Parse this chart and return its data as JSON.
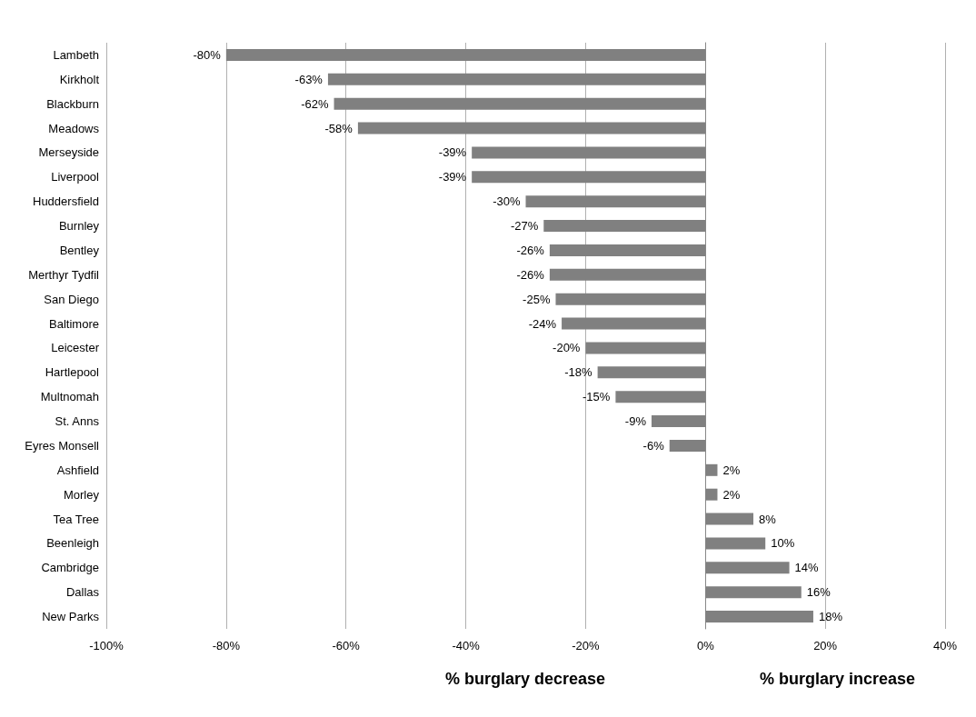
{
  "chart_data": {
    "type": "bar",
    "orientation": "horizontal",
    "categories": [
      "Lambeth",
      "Kirkholt",
      "Blackburn",
      "Meadows",
      "Merseyside",
      "Liverpool",
      "Huddersfield",
      "Burnley",
      "Bentley",
      "Merthyr Tydfil",
      "San Diego",
      "Baltimore",
      "Leicester",
      "Hartlepool",
      "Multnomah",
      "St. Anns",
      "Eyres Monsell",
      "Ashfield",
      "Morley",
      "Tea Tree",
      "Beenleigh",
      "Cambridge",
      "Dallas",
      "New Parks"
    ],
    "values": [
      -80,
      -63,
      -62,
      -58,
      -39,
      -39,
      -30,
      -27,
      -26,
      -26,
      -25,
      -24,
      -20,
      -18,
      -15,
      -9,
      -6,
      2,
      2,
      8,
      10,
      14,
      16,
      18
    ],
    "value_labels": [
      "-80%",
      "-63%",
      "-62%",
      "-58%",
      "-39%",
      "-39%",
      "-30%",
      "-27%",
      "-26%",
      "-26%",
      "-25%",
      "-24%",
      "-20%",
      "-18%",
      "-15%",
      "-9%",
      "-6%",
      "2%",
      "2%",
      "8%",
      "10%",
      "14%",
      "16%",
      "18%"
    ],
    "color": "#808080",
    "xlim": [
      -100,
      40
    ],
    "xticks": [
      {
        "value": -100,
        "label": "-100%"
      },
      {
        "value": -80,
        "label": "-80%"
      },
      {
        "value": -60,
        "label": "-60%"
      },
      {
        "value": -40,
        "label": "-40%"
      },
      {
        "value": -20,
        "label": "-20%"
      },
      {
        "value": 0,
        "label": "0%"
      },
      {
        "value": 20,
        "label": "20%"
      },
      {
        "value": 40,
        "label": "40%"
      }
    ],
    "grid": "x",
    "annotations": [
      "% burglary decrease",
      "% burglary increase"
    ]
  }
}
